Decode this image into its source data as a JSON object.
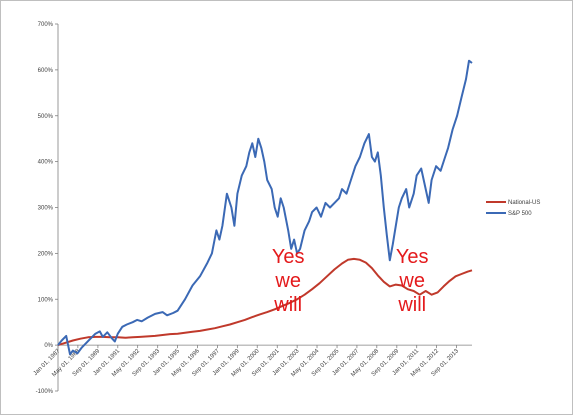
{
  "chart_data": {
    "type": "line",
    "title": "",
    "xlabel": "",
    "ylabel": "",
    "ylim": [
      -100,
      700
    ],
    "yticks": [
      "-100%",
      "0%",
      "100%",
      "200%",
      "300%",
      "400%",
      "500%",
      "600%",
      "700%"
    ],
    "ytick_values": [
      -100,
      0,
      100,
      200,
      300,
      400,
      500,
      600,
      700
    ],
    "x_range": [
      1987.0,
      2014.7
    ],
    "xticks": [
      {
        "label": "Jan 01, 1987",
        "x": 1987.0
      },
      {
        "label": "May 01, 1988",
        "x": 1988.33
      },
      {
        "label": "Sep 01, 1989",
        "x": 1989.67
      },
      {
        "label": "Jan 01, 1991",
        "x": 1991.0
      },
      {
        "label": "May 01, 1992",
        "x": 1992.33
      },
      {
        "label": "Sep 01, 1993",
        "x": 1993.67
      },
      {
        "label": "Jan 01, 1995",
        "x": 1995.0
      },
      {
        "label": "May 01, 1996",
        "x": 1996.33
      },
      {
        "label": "Sep 01, 1997",
        "x": 1997.67
      },
      {
        "label": "Jan 01, 1999",
        "x": 1999.0
      },
      {
        "label": "May 01, 2000",
        "x": 2000.33
      },
      {
        "label": "Sep 01, 2001",
        "x": 2001.67
      },
      {
        "label": "Jan 01, 2003",
        "x": 2003.0
      },
      {
        "label": "May 01, 2004",
        "x": 2004.33
      },
      {
        "label": "Sep 01, 2005",
        "x": 2005.67
      },
      {
        "label": "Jan 01, 2007",
        "x": 2007.0
      },
      {
        "label": "May 01, 2008",
        "x": 2008.33
      },
      {
        "label": "Sep 01, 2009",
        "x": 2009.67
      },
      {
        "label": "Jan 01, 2011",
        "x": 2011.0
      },
      {
        "label": "May 01, 2012",
        "x": 2012.33
      },
      {
        "label": "Sep 01, 2013",
        "x": 2013.67
      }
    ],
    "grid": false,
    "legend_position": "right",
    "series": [
      {
        "name": "National-US",
        "color": "#c0392b",
        "points": [
          [
            1987.0,
            0
          ],
          [
            1987.5,
            5
          ],
          [
            1988.0,
            10
          ],
          [
            1988.5,
            14
          ],
          [
            1989.0,
            17
          ],
          [
            1989.5,
            18
          ],
          [
            1990.0,
            18
          ],
          [
            1990.5,
            17
          ],
          [
            1991.0,
            17
          ],
          [
            1991.5,
            16
          ],
          [
            1992.0,
            17
          ],
          [
            1992.5,
            18
          ],
          [
            1993.0,
            19
          ],
          [
            1993.5,
            20
          ],
          [
            1994.0,
            22
          ],
          [
            1994.5,
            24
          ],
          [
            1995.0,
            25
          ],
          [
            1995.5,
            27
          ],
          [
            1996.0,
            29
          ],
          [
            1996.5,
            31
          ],
          [
            1997.0,
            34
          ],
          [
            1997.5,
            37
          ],
          [
            1998.0,
            41
          ],
          [
            1998.5,
            45
          ],
          [
            1999.0,
            50
          ],
          [
            1999.5,
            55
          ],
          [
            2000.0,
            61
          ],
          [
            2000.5,
            67
          ],
          [
            2001.0,
            72
          ],
          [
            2001.5,
            78
          ],
          [
            2002.0,
            85
          ],
          [
            2002.5,
            92
          ],
          [
            2003.0,
            100
          ],
          [
            2003.5,
            110
          ],
          [
            2004.0,
            122
          ],
          [
            2004.5,
            135
          ],
          [
            2005.0,
            150
          ],
          [
            2005.5,
            165
          ],
          [
            2006.0,
            178
          ],
          [
            2006.4,
            186
          ],
          [
            2006.8,
            188
          ],
          [
            2007.2,
            186
          ],
          [
            2007.6,
            180
          ],
          [
            2008.0,
            168
          ],
          [
            2008.4,
            152
          ],
          [
            2008.8,
            138
          ],
          [
            2009.2,
            128
          ],
          [
            2009.6,
            132
          ],
          [
            2010.0,
            130
          ],
          [
            2010.4,
            122
          ],
          [
            2010.8,
            118
          ],
          [
            2011.2,
            110
          ],
          [
            2011.6,
            118
          ],
          [
            2012.0,
            110
          ],
          [
            2012.4,
            115
          ],
          [
            2012.8,
            128
          ],
          [
            2013.2,
            140
          ],
          [
            2013.6,
            150
          ],
          [
            2014.0,
            155
          ],
          [
            2014.4,
            160
          ],
          [
            2014.7,
            163
          ]
        ]
      },
      {
        "name": "S&P 500",
        "color": "#3b69b5",
        "points": [
          [
            1987.0,
            0
          ],
          [
            1987.25,
            10
          ],
          [
            1987.55,
            20
          ],
          [
            1987.8,
            -20
          ],
          [
            1988.0,
            -12
          ],
          [
            1988.3,
            -18
          ],
          [
            1988.6,
            -5
          ],
          [
            1988.9,
            5
          ],
          [
            1989.2,
            15
          ],
          [
            1989.5,
            25
          ],
          [
            1989.8,
            30
          ],
          [
            1990.0,
            18
          ],
          [
            1990.3,
            28
          ],
          [
            1990.6,
            15
          ],
          [
            1990.8,
            8
          ],
          [
            1991.0,
            25
          ],
          [
            1991.3,
            40
          ],
          [
            1991.6,
            45
          ],
          [
            1992.0,
            50
          ],
          [
            1992.3,
            55
          ],
          [
            1992.6,
            52
          ],
          [
            1993.0,
            60
          ],
          [
            1993.5,
            68
          ],
          [
            1994.0,
            72
          ],
          [
            1994.3,
            65
          ],
          [
            1994.7,
            70
          ],
          [
            1995.0,
            75
          ],
          [
            1995.5,
            100
          ],
          [
            1996.0,
            130
          ],
          [
            1996.5,
            150
          ],
          [
            1997.0,
            180
          ],
          [
            1997.3,
            200
          ],
          [
            1997.6,
            250
          ],
          [
            1997.8,
            230
          ],
          [
            1998.0,
            260
          ],
          [
            1998.3,
            330
          ],
          [
            1998.6,
            300
          ],
          [
            1998.8,
            260
          ],
          [
            1999.0,
            330
          ],
          [
            1999.3,
            370
          ],
          [
            1999.6,
            390
          ],
          [
            1999.8,
            420
          ],
          [
            2000.0,
            440
          ],
          [
            2000.2,
            410
          ],
          [
            2000.4,
            450
          ],
          [
            2000.6,
            430
          ],
          [
            2000.8,
            400
          ],
          [
            2001.0,
            360
          ],
          [
            2001.3,
            340
          ],
          [
            2001.5,
            300
          ],
          [
            2001.7,
            280
          ],
          [
            2001.9,
            320
          ],
          [
            2002.1,
            300
          ],
          [
            2002.4,
            250
          ],
          [
            2002.6,
            210
          ],
          [
            2002.8,
            230
          ],
          [
            2003.0,
            200
          ],
          [
            2003.2,
            210
          ],
          [
            2003.5,
            250
          ],
          [
            2003.8,
            270
          ],
          [
            2004.0,
            290
          ],
          [
            2004.3,
            300
          ],
          [
            2004.6,
            280
          ],
          [
            2004.9,
            310
          ],
          [
            2005.2,
            300
          ],
          [
            2005.5,
            310
          ],
          [
            2005.8,
            320
          ],
          [
            2006.0,
            340
          ],
          [
            2006.3,
            330
          ],
          [
            2006.6,
            360
          ],
          [
            2006.9,
            390
          ],
          [
            2007.2,
            410
          ],
          [
            2007.5,
            440
          ],
          [
            2007.8,
            460
          ],
          [
            2008.0,
            410
          ],
          [
            2008.2,
            400
          ],
          [
            2008.4,
            420
          ],
          [
            2008.6,
            370
          ],
          [
            2008.8,
            300
          ],
          [
            2009.0,
            240
          ],
          [
            2009.2,
            185
          ],
          [
            2009.4,
            220
          ],
          [
            2009.6,
            260
          ],
          [
            2009.8,
            300
          ],
          [
            2010.0,
            320
          ],
          [
            2010.3,
            340
          ],
          [
            2010.5,
            300
          ],
          [
            2010.8,
            330
          ],
          [
            2011.0,
            370
          ],
          [
            2011.3,
            385
          ],
          [
            2011.6,
            340
          ],
          [
            2011.8,
            310
          ],
          [
            2012.0,
            360
          ],
          [
            2012.3,
            390
          ],
          [
            2012.6,
            380
          ],
          [
            2012.9,
            410
          ],
          [
            2013.1,
            430
          ],
          [
            2013.4,
            470
          ],
          [
            2013.7,
            500
          ],
          [
            2014.0,
            540
          ],
          [
            2014.3,
            580
          ],
          [
            2014.5,
            620
          ],
          [
            2014.7,
            615
          ]
        ]
      }
    ],
    "annotations": [
      {
        "lines": [
          "Yes",
          "we",
          "will"
        ],
        "x": 2002.4,
        "y": 205
      },
      {
        "lines": [
          "Yes",
          "we",
          "will"
        ],
        "x": 2010.7,
        "y": 205
      }
    ]
  }
}
